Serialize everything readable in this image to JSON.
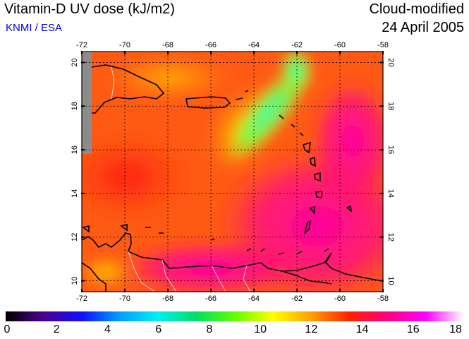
{
  "header": {
    "title": "Vitamin-D UV dose (kJ/m2)",
    "credit": "KNMI / ESA",
    "mode": "Cloud-modified",
    "date": "24 April 2005"
  },
  "map": {
    "lon_range": [
      -72,
      -58
    ],
    "lat_range": [
      9.5,
      20.5
    ],
    "lon_ticks": [
      "-72",
      "-70",
      "-68",
      "-66",
      "-64",
      "-62",
      "-60",
      "-58"
    ],
    "lat_ticks": [
      "10",
      "12",
      "14",
      "16",
      "18",
      "20"
    ],
    "grid": true,
    "colors": {
      "background": "#ff5a14",
      "coast": "#000000",
      "border": "#ffffff",
      "no_data": "#8c8c8c"
    }
  },
  "colorbar": {
    "labels": [
      "0",
      "2",
      "4",
      "6",
      "8",
      "10",
      "12",
      "14",
      "16",
      "18"
    ],
    "range": [
      0,
      18
    ],
    "stops": [
      "#000000",
      "#4a0090",
      "#1010ff",
      "#00a0ff",
      "#00f0f0",
      "#00e060",
      "#60ff00",
      "#ffff00",
      "#ffa000",
      "#ff2000",
      "#ff0080",
      "#ff00ff",
      "#ffffff"
    ]
  }
}
